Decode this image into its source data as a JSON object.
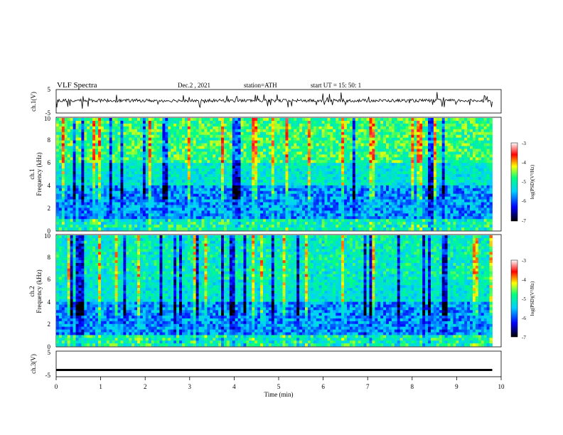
{
  "header": {
    "title": "VLF  Spectra",
    "date": "Dec.2  , 2021",
    "station": "station=ATH",
    "start": "start  UT  =    15: 50: 1"
  },
  "chart_data": [
    {
      "type": "line",
      "name": "ch1-waveform",
      "ylabel": "ch.1(V)",
      "ylim": [
        -5,
        5
      ],
      "yticks": [
        "5",
        "-5"
      ],
      "x_range_min": [
        0,
        9.8
      ],
      "typical_value": 0.3,
      "color": "#000000"
    },
    {
      "type": "heatmap",
      "name": "ch1-spectrogram",
      "ylabel": "ch.1\nFrequency  (kHz)",
      "ylim": [
        0,
        10
      ],
      "yticks": [
        "0",
        "2",
        "4",
        "6",
        "8",
        "10"
      ],
      "x_range_min": [
        0,
        9.8
      ],
      "colorbar": {
        "label": "log(PSD)(V²/Hz)",
        "range": [
          -7,
          -3
        ],
        "ticks": [
          "-3",
          "-4",
          "-5",
          "-6",
          "-7"
        ],
        "colors": [
          "#000000",
          "#0000ff",
          "#00d0ff",
          "#00ff80",
          "#ffff00",
          "#ff0000",
          "#ffffff"
        ]
      }
    },
    {
      "type": "heatmap",
      "name": "ch2-spectrogram",
      "ylabel": "ch.2\nFrequency  (kHz)",
      "ylim": [
        0,
        10
      ],
      "yticks": [
        "0",
        "2",
        "4",
        "6",
        "8",
        "10"
      ],
      "x_range_min": [
        0,
        9.8
      ],
      "colorbar": {
        "label": "log(PSD)(V²/Hz)",
        "range": [
          -7,
          -3
        ],
        "ticks": [
          "-3",
          "-4",
          "-5",
          "-6",
          "-7"
        ],
        "colors": [
          "#000000",
          "#0000ff",
          "#00d0ff",
          "#00ff80",
          "#ffff00",
          "#ff0000",
          "#ffffff"
        ]
      }
    },
    {
      "type": "line",
      "name": "ch3-waveform",
      "ylabel": "ch.3(V)",
      "ylim": [
        -5,
        5
      ],
      "yticks": [
        "5",
        "-5"
      ],
      "x_range_min": [
        0,
        9.8
      ],
      "typical_value": -2.5,
      "color": "#000000"
    }
  ],
  "xaxis": {
    "label": "Time  (min)",
    "range": [
      0,
      10
    ],
    "ticks": [
      "0",
      "1",
      "2",
      "3",
      "4",
      "5",
      "6",
      "7",
      "8",
      "9",
      "10"
    ]
  }
}
